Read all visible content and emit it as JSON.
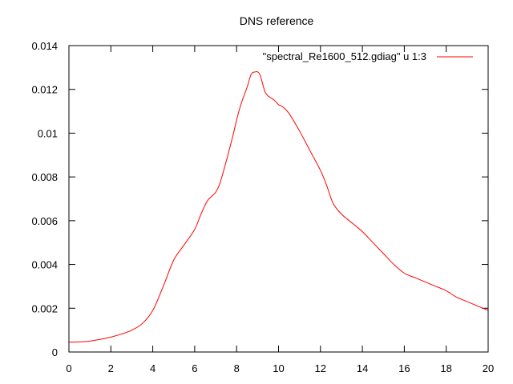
{
  "chart_data": {
    "type": "line",
    "title": "DNS reference",
    "xlabel": "",
    "ylabel": "",
    "xlim": [
      0,
      20
    ],
    "ylim": [
      0,
      0.014
    ],
    "xticks": [
      0,
      2,
      4,
      6,
      8,
      10,
      12,
      14,
      16,
      18,
      20
    ],
    "xtick_labels": [
      "0",
      "2",
      "4",
      "6",
      "8",
      "10",
      "12",
      "14",
      "16",
      "18",
      "20"
    ],
    "yticks": [
      0,
      0.002,
      0.004,
      0.006,
      0.008,
      0.01,
      0.012,
      0.014
    ],
    "ytick_labels": [
      "0",
      "0.002",
      "0.004",
      "0.006",
      "0.008",
      "0.01",
      "0.012",
      "0.014"
    ],
    "grid": false,
    "legend_position": "top-right",
    "series": [
      {
        "name": "\"spectral_Re1600_512.gdiag\" u 1:3",
        "color": "#ff0000",
        "x": [
          0,
          0.5,
          1,
          1.5,
          2,
          2.5,
          3,
          3.5,
          4,
          4.5,
          5,
          5.5,
          6,
          6.3,
          6.6,
          6.8,
          7,
          7.2,
          7.5,
          7.8,
          8,
          8.2,
          8.5,
          8.7,
          8.9,
          9,
          9.1,
          9.2,
          9.35,
          9.5,
          9.8,
          10,
          10.2,
          10.5,
          11,
          11.5,
          12,
          12.3,
          12.6,
          13,
          13.5,
          14,
          14.5,
          15,
          15.5,
          16,
          16.5,
          17,
          17.5,
          18,
          18.5,
          19,
          19.5,
          20
        ],
        "y": [
          0.00045,
          0.00046,
          0.0005,
          0.00058,
          0.00068,
          0.00082,
          0.001,
          0.0013,
          0.0019,
          0.003,
          0.0042,
          0.0049,
          0.0056,
          0.0063,
          0.0069,
          0.0071,
          0.0073,
          0.0077,
          0.0087,
          0.0098,
          0.0106,
          0.0113,
          0.0121,
          0.0127,
          0.0128,
          0.0128,
          0.0127,
          0.0124,
          0.0119,
          0.0117,
          0.0115,
          0.0113,
          0.0112,
          0.0109,
          0.0101,
          0.0092,
          0.0083,
          0.0076,
          0.0068,
          0.0063,
          0.0059,
          0.0055,
          0.005,
          0.0045,
          0.004,
          0.0036,
          0.0034,
          0.0032,
          0.003,
          0.0028,
          0.0025,
          0.0023,
          0.0021,
          0.0019
        ]
      }
    ]
  }
}
